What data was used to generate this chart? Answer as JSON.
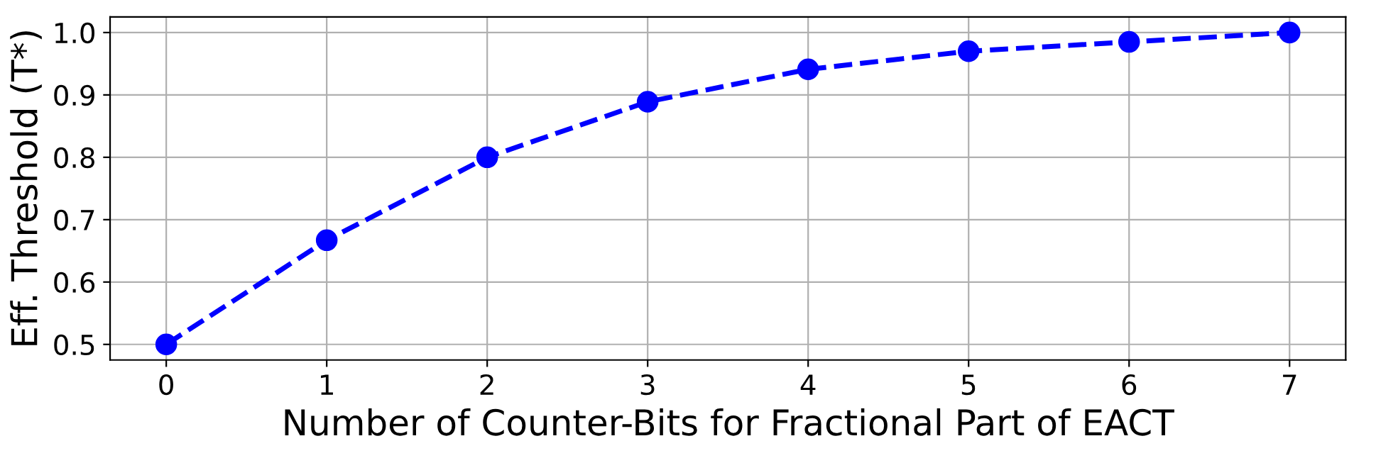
{
  "chart_data": {
    "type": "line",
    "xlabel": "Number of Counter-Bits for Fractional Part of EACT",
    "ylabel": "Eff. Threshold (T*)",
    "x": [
      0,
      1,
      2,
      3,
      4,
      5,
      6,
      7
    ],
    "series": [
      {
        "color": "#0000ff",
        "values": [
          0.5,
          0.667,
          0.8,
          0.889,
          0.941,
          0.97,
          0.985,
          1.0
        ]
      }
    ],
    "xlim": [
      -0.35,
      7.35
    ],
    "xticks": [
      0,
      1,
      2,
      3,
      4,
      5,
      6,
      7
    ],
    "ylim": [
      0.475,
      1.025
    ],
    "yticks": [
      0.5,
      0.6,
      0.7,
      0.8,
      0.9,
      {
        "value": 1,
        "label": "1.0"
      }
    ],
    "grid": true,
    "marker": "circle",
    "line_style": "dashed"
  }
}
